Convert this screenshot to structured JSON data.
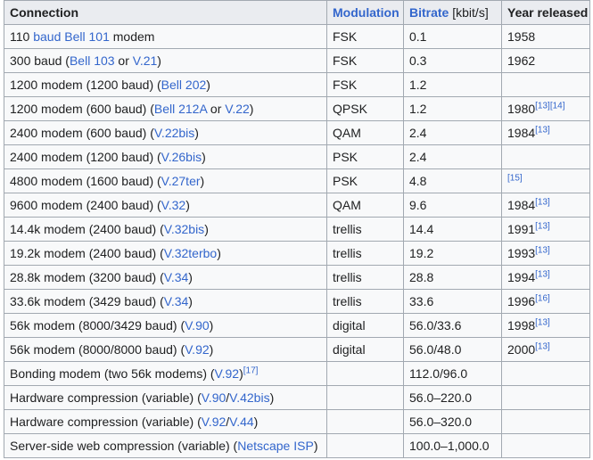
{
  "header": {
    "connection": "Connection",
    "modulation": "Modulation",
    "bitrate": "Bitrate",
    "bitrate_unit": " [kbit/s]",
    "year": "Year released"
  },
  "rows": [
    {
      "connection": [
        {
          "t": "110 "
        },
        {
          "t": "baud",
          "link": true
        },
        {
          "t": " "
        },
        {
          "t": "Bell 101",
          "link": true
        },
        {
          "t": " modem"
        }
      ],
      "modulation": "FSK",
      "bitrate": "0.1",
      "year": "1958",
      "year_refs": []
    },
    {
      "connection": [
        {
          "t": "300 baud ("
        },
        {
          "t": "Bell 103",
          "link": true
        },
        {
          "t": " or "
        },
        {
          "t": "V.21",
          "link": true
        },
        {
          "t": ")"
        }
      ],
      "modulation": "FSK",
      "bitrate": "0.3",
      "year": "1962",
      "year_refs": []
    },
    {
      "connection": [
        {
          "t": "1200 modem (1200 baud) ("
        },
        {
          "t": "Bell 202",
          "link": true
        },
        {
          "t": ")"
        }
      ],
      "modulation": "FSK",
      "bitrate": "1.2",
      "year": "",
      "year_refs": []
    },
    {
      "connection": [
        {
          "t": "1200 modem (600 baud) ("
        },
        {
          "t": "Bell 212A",
          "link": true
        },
        {
          "t": " or "
        },
        {
          "t": "V.22",
          "link": true
        },
        {
          "t": ")"
        }
      ],
      "modulation": "QPSK",
      "bitrate": "1.2",
      "year": "1980",
      "year_refs": [
        "[13]",
        "[14]"
      ]
    },
    {
      "connection": [
        {
          "t": "2400 modem (600 baud) ("
        },
        {
          "t": "V.22bis",
          "link": true
        },
        {
          "t": ")"
        }
      ],
      "modulation": "QAM",
      "bitrate": "2.4",
      "year": "1984",
      "year_refs": [
        "[13]"
      ]
    },
    {
      "connection": [
        {
          "t": "2400 modem (1200 baud) ("
        },
        {
          "t": "V.26bis",
          "link": true
        },
        {
          "t": ")"
        }
      ],
      "modulation": "PSK",
      "bitrate": "2.4",
      "year": "",
      "year_refs": []
    },
    {
      "connection": [
        {
          "t": "4800 modem (1600 baud) ("
        },
        {
          "t": "V.27ter",
          "link": true
        },
        {
          "t": ")"
        }
      ],
      "modulation": "PSK",
      "bitrate": "4.8",
      "year": "",
      "year_refs": [
        "[15]"
      ]
    },
    {
      "connection": [
        {
          "t": "9600 modem (2400 baud) ("
        },
        {
          "t": "V.32",
          "link": true
        },
        {
          "t": ")"
        }
      ],
      "modulation": "QAM",
      "bitrate": "9.6",
      "year": "1984",
      "year_refs": [
        "[13]"
      ]
    },
    {
      "connection": [
        {
          "t": "14.4k modem (2400 baud) ("
        },
        {
          "t": "V.32bis",
          "link": true
        },
        {
          "t": ")"
        }
      ],
      "modulation": "trellis",
      "bitrate": "14.4",
      "year": "1991",
      "year_refs": [
        "[13]"
      ]
    },
    {
      "connection": [
        {
          "t": "19.2k modem (2400 baud) ("
        },
        {
          "t": "V.32terbo",
          "link": true
        },
        {
          "t": ")"
        }
      ],
      "modulation": "trellis",
      "bitrate": "19.2",
      "year": "1993",
      "year_refs": [
        "[13]"
      ]
    },
    {
      "connection": [
        {
          "t": "28.8k modem (3200 baud) ("
        },
        {
          "t": "V.34",
          "link": true
        },
        {
          "t": ")"
        }
      ],
      "modulation": "trellis",
      "bitrate": "28.8",
      "year": "1994",
      "year_refs": [
        "[13]"
      ]
    },
    {
      "connection": [
        {
          "t": "33.6k modem (3429 baud) ("
        },
        {
          "t": "V.34",
          "link": true
        },
        {
          "t": ")"
        }
      ],
      "modulation": "trellis",
      "bitrate": "33.6",
      "year": "1996",
      "year_refs": [
        "[16]"
      ]
    },
    {
      "connection": [
        {
          "t": "56k modem (8000/3429 baud) ("
        },
        {
          "t": "V.90",
          "link": true
        },
        {
          "t": ")"
        }
      ],
      "modulation": "digital",
      "bitrate": "56.0/33.6",
      "year": "1998",
      "year_refs": [
        "[13]"
      ]
    },
    {
      "connection": [
        {
          "t": "56k modem (8000/8000 baud) ("
        },
        {
          "t": "V.92",
          "link": true
        },
        {
          "t": ")"
        }
      ],
      "modulation": "digital",
      "bitrate": "56.0/48.0",
      "year": "2000",
      "year_refs": [
        "[13]"
      ]
    },
    {
      "connection": [
        {
          "t": "Bonding modem (two 56k modems) ("
        },
        {
          "t": "V.92",
          "link": true
        },
        {
          "t": ")"
        },
        {
          "t": "[17]",
          "ref": true
        }
      ],
      "modulation": "",
      "bitrate": "112.0/96.0",
      "year": "",
      "year_refs": []
    },
    {
      "connection": [
        {
          "t": "Hardware compression (variable) ("
        },
        {
          "t": "V.90",
          "link": true
        },
        {
          "t": "/"
        },
        {
          "t": "V.42bis",
          "link": true
        },
        {
          "t": ")"
        }
      ],
      "modulation": "",
      "bitrate": "56.0–220.0",
      "year": "",
      "year_refs": []
    },
    {
      "connection": [
        {
          "t": "Hardware compression (variable) ("
        },
        {
          "t": "V.92",
          "link": true
        },
        {
          "t": "/"
        },
        {
          "t": "V.44",
          "link": true
        },
        {
          "t": ")"
        }
      ],
      "modulation": "",
      "bitrate": "56.0–320.0",
      "year": "",
      "year_refs": []
    },
    {
      "connection": [
        {
          "t": "Server-side web compression (variable) ("
        },
        {
          "t": "Netscape ISP",
          "link": true
        },
        {
          "t": ")"
        }
      ],
      "modulation": "",
      "bitrate": "100.0–1,000.0",
      "year": "",
      "year_refs": []
    }
  ]
}
